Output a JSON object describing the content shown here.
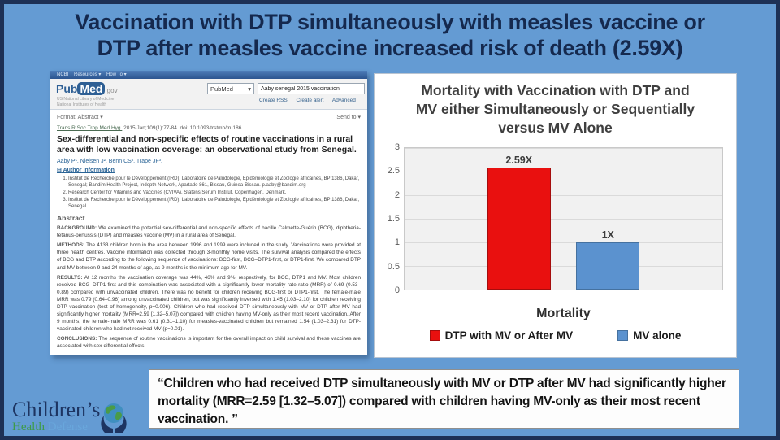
{
  "slide": {
    "title_line1": "Vaccination with DTP simultaneously with measles vaccine or",
    "title_line2": "DTP after measles vaccine increased risk of death (2.59X)"
  },
  "colors": {
    "slide_background": "#649bd3",
    "slide_border": "#1d3055",
    "title_text": "#15294e",
    "bar_red": "#e9100f",
    "bar_red_border": "#a50d0d",
    "bar_blue": "#5b92cf",
    "bar_blue_border": "#45719f"
  },
  "pubmed": {
    "navbar": "NCBI    Resources ▾    How To ▾",
    "logo_pub": "Pub",
    "logo_med": "Med",
    "logo_gov": ".gov",
    "logo_sub1": "US National Library of Medicine",
    "logo_sub2": "National Institutes of Health",
    "search_scope": "PubMed",
    "search_scope_arrow": "▾",
    "search_value": "Aaby senegal 2015 vaccination",
    "link_create_rss": "Create RSS",
    "link_create_alert": "Create alert",
    "link_advanced": "Advanced",
    "format_label": "Format: Abstract ▾",
    "send_to": "Send to ▾",
    "citation_journal": "Trans R Soc Trop Med Hyg.",
    "citation_rest": " 2015 Jan;109(1):77-84. doi: 10.1093/trstmh/tru186.",
    "article_title": "Sex-differential and non-specific effects of routine vaccinations in a rural area with low vaccination coverage: an observational study from Senegal.",
    "authors": "Aaby P¹, Nielsen J², Benn CS², Trape JF³.",
    "author_info_icon": "⊟",
    "author_info_label": "Author information",
    "affiliations": [
      "Institut de Recherche pour le Développement (IRD), Laboratoire de Paludologie, Epidémiologie et Zoologie africaines, BP 1386, Dakar, Senegal; Bandim Health Project, Indepth Network, Apartado 861, Bissau, Guinea-Bissau. p.aaby@bandim.org",
      "Research Center for Vitamins and Vaccines (CVIVA), Statens Serum Institut, Copenhagen, Denmark.",
      "Institut de Recherche pour le Développement (IRD), Laboratoire de Paludologie, Epidémiologie et Zoologie africaines, BP 1386, Dakar, Senegal."
    ],
    "abstract_heading": "Abstract",
    "background_label": "BACKGROUND:",
    "background_text": " We examined the potential sex-differential and non-specific effects of bacille Calmette-Guérin (BCG), diphtheria-tetanus-pertussis (DTP) and measles vaccine (MV) in a rural area of Senegal.",
    "methods_label": "METHODS:",
    "methods_text": " The 4133 children born in the area between 1996 and 1999 were included in the study. Vaccinations were provided at three health centres. Vaccine information was collected through 3-monthly home visits. The survival analysis compared the effects of BCG and DTP according to the following sequence of vaccinations: BCG-first, BCG–DTP1-first, or DTP1-first. We compared DTP and MV between 9 and 24 months of age, as 9 months is the minimum age for MV.",
    "results_label": "RESULTS:",
    "results_text": " At 12 months the vaccination coverage was 44%, 46% and 9%, respectively, for BCG, DTP1 and MV. Most children received BCG–DTP1-first and this combination was associated with a significantly lower mortality rate ratio (MRR) of 0.69 (0.53–0.89) compared with unvaccinated children. There was no benefit for children receiving BCG-first or DTP1-first. The female-male MRR was 0.79 (0.64–0.96) among unvaccinated children, but was significantly inversed with 1.45 (1.03–2.10) for children receiving DTP vaccination (test of homogeneity, p=0.006). Children who had received DTP simultaneously with MV or DTP after MV had significantly higher mortality (MRR=2.59 [1.32–5.07]) compared with children having MV-only as their most recent vaccination. After 9 months, the female-male MRR was 0.61 (0.31–1.10) for measles-vaccinated children but remained 1.54 (1.03–2.31) for DTP-vaccinated children who had not received MV (p=0.01).",
    "conclusions_label": "CONCLUSIONS:",
    "conclusions_text": " The sequence of routine vaccinations is important for the overall impact on child survival and these vaccines are associated with sex-differential effects."
  },
  "chart_data": {
    "type": "bar",
    "title": "Mortality with Vaccination with DTP and MV either Simultaneously or Sequentially versus MV Alone",
    "title_lines": [
      "Mortality with Vaccination with DTP and",
      "MV either Simultaneously or Sequentially",
      "versus MV Alone"
    ],
    "categories": [
      "DTP with MV or After MV",
      "MV alone"
    ],
    "values": [
      2.59,
      1
    ],
    "bar_labels": [
      "2.59X",
      "1X"
    ],
    "xlabel": "Mortality",
    "ylabel": "",
    "ylim": [
      0,
      3
    ],
    "yticks": [
      0,
      0.5,
      1,
      1.5,
      2,
      2.5,
      3
    ],
    "grid": true,
    "legend_position": "bottom",
    "legend": [
      {
        "label": "DTP with MV or After MV",
        "color": "#e9100f",
        "border": "#a50d0d"
      },
      {
        "label": "MV alone",
        "color": "#5b92cf",
        "border": "#45719f"
      }
    ]
  },
  "quote": {
    "text": "“Children who had received DTP simultaneously with MV or DTP after MV had significantly higher mortality (MRR=2.59 [1.32–5.07])  compared with children having MV-only as their most recent vaccination. ”"
  },
  "logo": {
    "word1": "Children’s",
    "word2": "Health",
    "word3": "Defense"
  }
}
